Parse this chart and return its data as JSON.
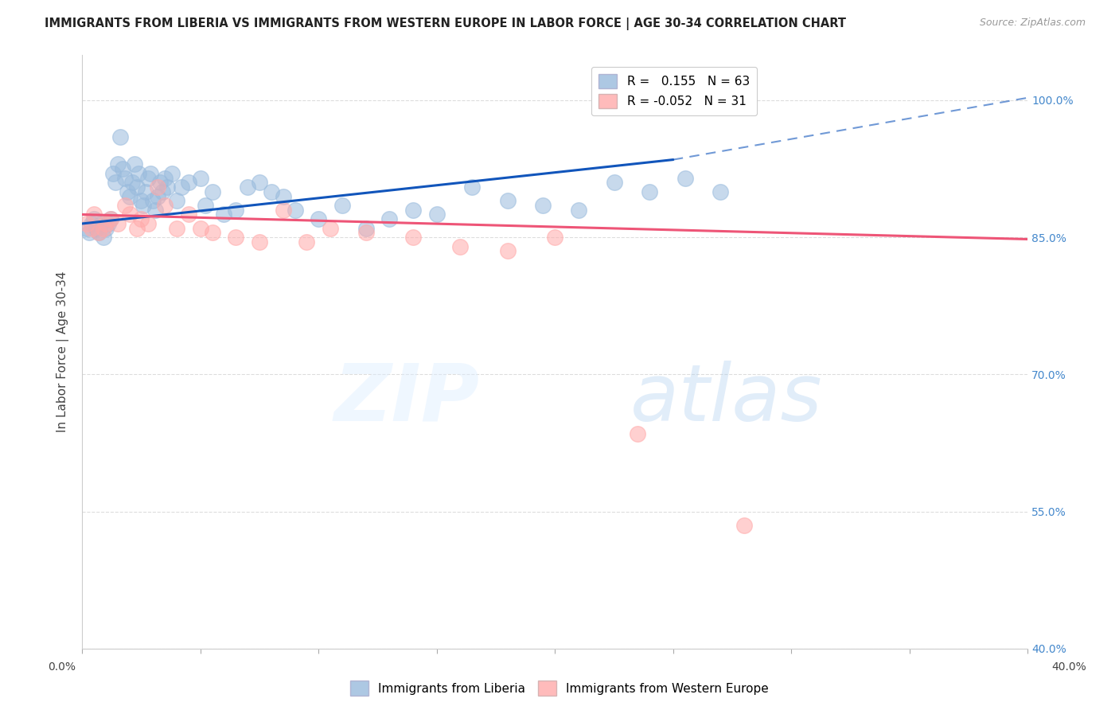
{
  "title": "IMMIGRANTS FROM LIBERIA VS IMMIGRANTS FROM WESTERN EUROPE IN LABOR FORCE | AGE 30-34 CORRELATION CHART",
  "source": "Source: ZipAtlas.com",
  "xlabel_blue": "Immigrants from Liberia",
  "xlabel_pink": "Immigrants from Western Europe",
  "ylabel": "In Labor Force | Age 30-34",
  "xlim": [
    0.0,
    40.0
  ],
  "ylim": [
    40.0,
    105.0
  ],
  "yticks": [
    40.0,
    55.0,
    70.0,
    85.0,
    100.0
  ],
  "xticks": [
    0.0,
    5.0,
    10.0,
    15.0,
    20.0,
    25.0,
    30.0,
    35.0,
    40.0
  ],
  "legend_blue_R": "0.155",
  "legend_blue_N": "63",
  "legend_pink_R": "-0.052",
  "legend_pink_N": "31",
  "blue_color": "#99BBDD",
  "pink_color": "#FFAAAA",
  "trend_blue": "#1155BB",
  "trend_pink": "#EE5577",
  "blue_scatter_x": [
    0.2,
    0.3,
    0.4,
    0.5,
    0.6,
    0.7,
    0.8,
    0.9,
    1.0,
    1.1,
    1.2,
    1.3,
    1.4,
    1.5,
    1.6,
    1.7,
    1.8,
    1.9,
    2.0,
    2.1,
    2.2,
    2.3,
    2.4,
    2.5,
    2.6,
    2.7,
    2.8,
    2.9,
    3.0,
    3.1,
    3.2,
    3.3,
    3.4,
    3.5,
    3.6,
    3.8,
    4.0,
    4.2,
    4.5,
    5.0,
    5.2,
    5.5,
    6.0,
    6.5,
    7.0,
    7.5,
    8.0,
    8.5,
    9.0,
    10.0,
    11.0,
    12.0,
    13.0,
    14.0,
    15.0,
    16.5,
    18.0,
    19.5,
    21.0,
    22.5,
    24.0,
    25.5,
    27.0
  ],
  "blue_scatter_y": [
    86.0,
    85.5,
    86.5,
    87.0,
    86.0,
    85.5,
    86.5,
    85.0,
    86.0,
    86.5,
    87.0,
    92.0,
    91.0,
    93.0,
    96.0,
    92.5,
    91.5,
    90.0,
    89.5,
    91.0,
    93.0,
    90.5,
    92.0,
    89.0,
    88.5,
    90.0,
    91.5,
    92.0,
    89.0,
    88.0,
    89.5,
    91.0,
    90.0,
    91.5,
    90.5,
    92.0,
    89.0,
    90.5,
    91.0,
    91.5,
    88.5,
    90.0,
    87.5,
    88.0,
    90.5,
    91.0,
    90.0,
    89.5,
    88.0,
    87.0,
    88.5,
    86.0,
    87.0,
    88.0,
    87.5,
    90.5,
    89.0,
    88.5,
    88.0,
    91.0,
    90.0,
    91.5,
    90.0
  ],
  "pink_scatter_x": [
    0.2,
    0.4,
    0.5,
    0.7,
    0.9,
    1.0,
    1.2,
    1.5,
    1.8,
    2.0,
    2.3,
    2.5,
    2.8,
    3.2,
    3.5,
    4.0,
    4.5,
    5.0,
    5.5,
    6.5,
    7.5,
    8.5,
    9.5,
    10.5,
    12.0,
    14.0,
    16.0,
    18.0,
    20.0,
    23.5,
    28.0
  ],
  "pink_scatter_y": [
    86.5,
    86.0,
    87.5,
    85.5,
    86.0,
    86.5,
    87.0,
    86.5,
    88.5,
    87.5,
    86.0,
    87.0,
    86.5,
    90.5,
    88.5,
    86.0,
    87.5,
    86.0,
    85.5,
    85.0,
    84.5,
    88.0,
    84.5,
    86.0,
    85.5,
    85.0,
    84.0,
    83.5,
    85.0,
    63.5,
    53.5
  ],
  "trend_blue_x0": 0.0,
  "trend_blue_y0": 86.5,
  "trend_blue_x1": 25.0,
  "trend_blue_y1": 93.5,
  "trend_blue_xdash0": 25.0,
  "trend_blue_ydash0": 93.5,
  "trend_blue_xdash1": 40.5,
  "trend_blue_ydash1": 100.5,
  "trend_pink_x0": 0.0,
  "trend_pink_y0": 87.5,
  "trend_pink_x1": 40.0,
  "trend_pink_y1": 84.8,
  "watermark_zip": "ZIP",
  "watermark_atlas": "atlas",
  "background_color": "#FFFFFF",
  "grid_color": "#DDDDDD"
}
